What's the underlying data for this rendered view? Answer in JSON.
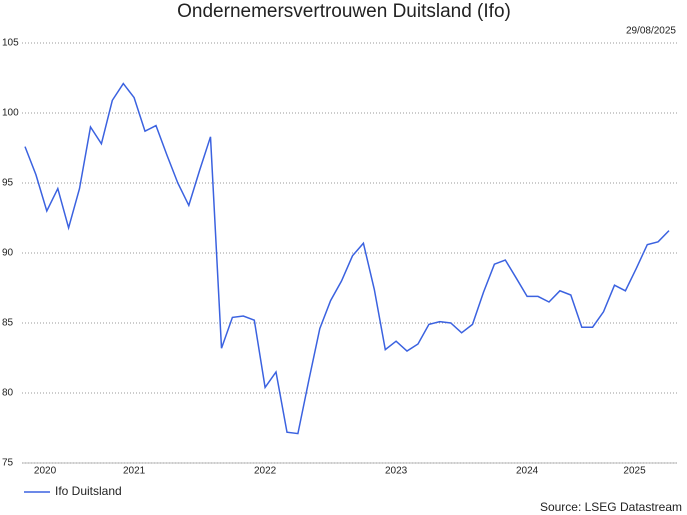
{
  "chart_data": {
    "type": "line",
    "title": "Ondernemersvertrouwen Duitsland (Ifo)",
    "date": "29/08/2025",
    "source": "Source: LSEG Datastream",
    "x": [
      2020.667,
      2020.75,
      2020.833,
      2020.917,
      2021,
      2021.083,
      2021.167,
      2021.25,
      2021.333,
      2021.417,
      2021.5,
      2021.583,
      2021.667,
      2021.75,
      2021.833,
      2021.917,
      2022,
      2022.083,
      2022.167,
      2022.25,
      2022.333,
      2022.417,
      2022.5,
      2022.583,
      2022.667,
      2022.75,
      2022.833,
      2022.917,
      2023,
      2023.083,
      2023.167,
      2023.25,
      2023.333,
      2023.417,
      2023.5,
      2023.583,
      2023.667,
      2023.75,
      2023.833,
      2023.917,
      2024,
      2024.083,
      2024.167,
      2024.25,
      2024.333,
      2024.417,
      2024.5,
      2024.583,
      2024.667,
      2024.75,
      2024.833,
      2024.917,
      2025,
      2025.083,
      2025.167,
      2025.25,
      2025.333,
      2025.417,
      2025.5,
      2025.583
    ],
    "series": [
      {
        "name": "Ifo Duitsland",
        "color": "#3b62e0",
        "values": [
          97.6,
          95.6,
          93.0,
          94.6,
          91.8,
          94.6,
          99.0,
          97.8,
          100.9,
          102.1,
          101.1,
          98.7,
          99.1,
          97.0,
          95.0,
          93.4,
          95.9,
          98.3,
          83.2,
          85.4,
          85.5,
          85.2,
          80.4,
          81.5,
          77.2,
          77.1,
          80.9,
          84.6,
          86.6,
          88.0,
          89.8,
          90.7,
          87.4,
          83.1,
          83.7,
          83.0,
          83.5,
          84.9,
          85.1,
          85.0,
          84.3,
          84.9,
          87.2,
          89.2,
          89.5,
          88.2,
          86.9,
          86.9,
          86.5,
          87.3,
          87.0,
          84.7,
          84.7,
          85.8,
          87.7,
          87.3,
          88.9,
          90.6,
          90.8,
          91.6
        ]
      }
    ],
    "xlim": [
      2020.644,
      2025.644
    ],
    "xticks": [
      {
        "value": 2020.82,
        "label": "2020"
      },
      {
        "value": 2021.5,
        "label": "2021"
      },
      {
        "value": 2022.5,
        "label": "2022"
      },
      {
        "value": 2023.5,
        "label": "2023"
      },
      {
        "value": 2024.5,
        "label": "2024"
      },
      {
        "value": 2025.32,
        "label": "2025"
      }
    ],
    "ylim": [
      75,
      105
    ],
    "yticks": [
      75,
      80,
      85,
      90,
      95,
      100,
      105
    ],
    "grid": true
  }
}
